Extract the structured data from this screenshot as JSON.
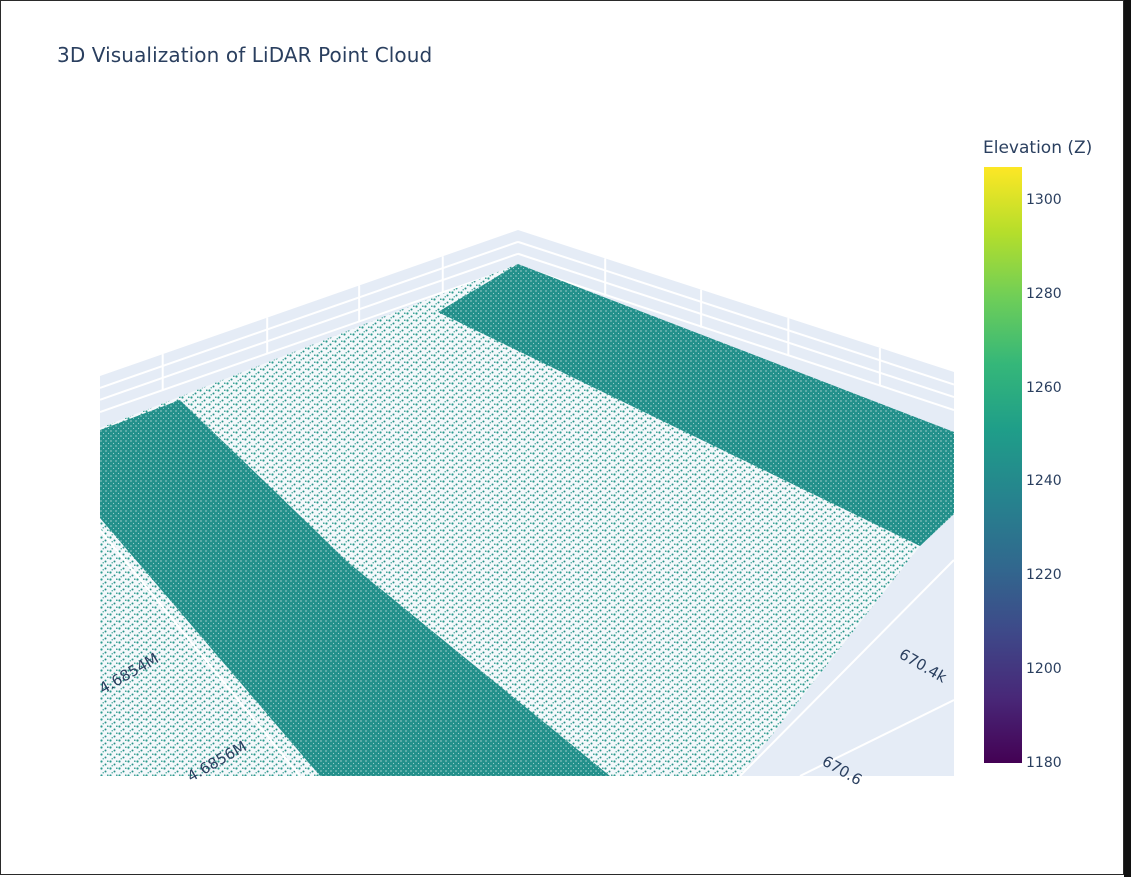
{
  "chart_data": {
    "type": "scatter3d",
    "title": "3D Visualization of LiDAR Point Cloud",
    "colorbar": {
      "title": "Elevation (Z)",
      "colorscale": "Viridis",
      "range": [
        1180,
        1307
      ],
      "ticks": [
        "1300",
        "1280",
        "1260",
        "1240",
        "1220",
        "1200",
        "1180"
      ]
    },
    "x_axis_ticks": [
      "670.4k",
      "670.6"
    ],
    "y_axis_ticks": [
      "4.6854M",
      "4.6856M"
    ],
    "point_colors": {
      "dense_band": "#22918c",
      "sparse_area": "#2a9a8e",
      "grid_background": "#e5ecf6",
      "grid_line": "#ffffff"
    },
    "elevation_approx": 1250
  }
}
